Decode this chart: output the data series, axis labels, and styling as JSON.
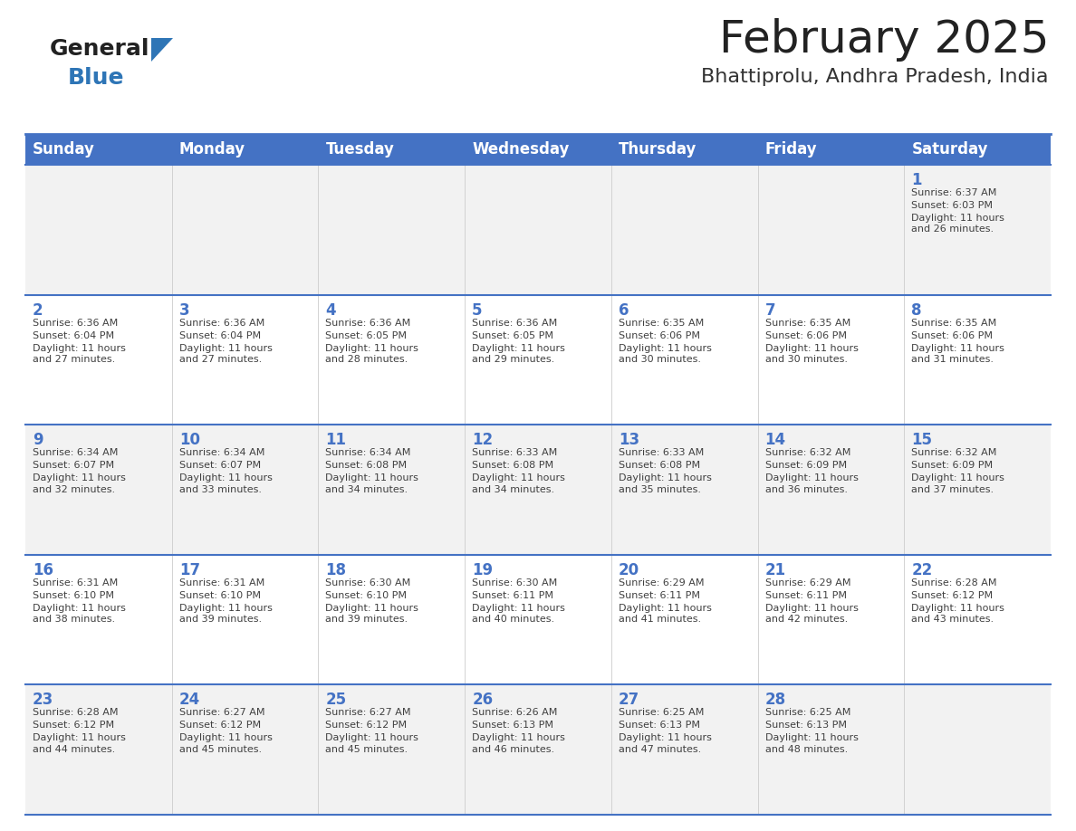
{
  "title": "February 2025",
  "subtitle": "Bhattiprolu, Andhra Pradesh, India",
  "header_color": "#4472C4",
  "header_text_color": "#FFFFFF",
  "weekdays": [
    "Sunday",
    "Monday",
    "Tuesday",
    "Wednesday",
    "Thursday",
    "Friday",
    "Saturday"
  ],
  "bg_color": "#FFFFFF",
  "cell_bg_even": "#F2F2F2",
  "cell_bg_odd": "#FFFFFF",
  "day_number_color": "#4472C4",
  "text_color": "#404040",
  "line_color": "#4472C4",
  "calendar": [
    [
      null,
      null,
      null,
      null,
      null,
      null,
      {
        "day": 1,
        "sunrise": "6:37 AM",
        "sunset": "6:03 PM",
        "daylight": "11 hours\nand 26 minutes."
      }
    ],
    [
      {
        "day": 2,
        "sunrise": "6:36 AM",
        "sunset": "6:04 PM",
        "daylight": "11 hours\nand 27 minutes."
      },
      {
        "day": 3,
        "sunrise": "6:36 AM",
        "sunset": "6:04 PM",
        "daylight": "11 hours\nand 27 minutes."
      },
      {
        "day": 4,
        "sunrise": "6:36 AM",
        "sunset": "6:05 PM",
        "daylight": "11 hours\nand 28 minutes."
      },
      {
        "day": 5,
        "sunrise": "6:36 AM",
        "sunset": "6:05 PM",
        "daylight": "11 hours\nand 29 minutes."
      },
      {
        "day": 6,
        "sunrise": "6:35 AM",
        "sunset": "6:06 PM",
        "daylight": "11 hours\nand 30 minutes."
      },
      {
        "day": 7,
        "sunrise": "6:35 AM",
        "sunset": "6:06 PM",
        "daylight": "11 hours\nand 30 minutes."
      },
      {
        "day": 8,
        "sunrise": "6:35 AM",
        "sunset": "6:06 PM",
        "daylight": "11 hours\nand 31 minutes."
      }
    ],
    [
      {
        "day": 9,
        "sunrise": "6:34 AM",
        "sunset": "6:07 PM",
        "daylight": "11 hours\nand 32 minutes."
      },
      {
        "day": 10,
        "sunrise": "6:34 AM",
        "sunset": "6:07 PM",
        "daylight": "11 hours\nand 33 minutes."
      },
      {
        "day": 11,
        "sunrise": "6:34 AM",
        "sunset": "6:08 PM",
        "daylight": "11 hours\nand 34 minutes."
      },
      {
        "day": 12,
        "sunrise": "6:33 AM",
        "sunset": "6:08 PM",
        "daylight": "11 hours\nand 34 minutes."
      },
      {
        "day": 13,
        "sunrise": "6:33 AM",
        "sunset": "6:08 PM",
        "daylight": "11 hours\nand 35 minutes."
      },
      {
        "day": 14,
        "sunrise": "6:32 AM",
        "sunset": "6:09 PM",
        "daylight": "11 hours\nand 36 minutes."
      },
      {
        "day": 15,
        "sunrise": "6:32 AM",
        "sunset": "6:09 PM",
        "daylight": "11 hours\nand 37 minutes."
      }
    ],
    [
      {
        "day": 16,
        "sunrise": "6:31 AM",
        "sunset": "6:10 PM",
        "daylight": "11 hours\nand 38 minutes."
      },
      {
        "day": 17,
        "sunrise": "6:31 AM",
        "sunset": "6:10 PM",
        "daylight": "11 hours\nand 39 minutes."
      },
      {
        "day": 18,
        "sunrise": "6:30 AM",
        "sunset": "6:10 PM",
        "daylight": "11 hours\nand 39 minutes."
      },
      {
        "day": 19,
        "sunrise": "6:30 AM",
        "sunset": "6:11 PM",
        "daylight": "11 hours\nand 40 minutes."
      },
      {
        "day": 20,
        "sunrise": "6:29 AM",
        "sunset": "6:11 PM",
        "daylight": "11 hours\nand 41 minutes."
      },
      {
        "day": 21,
        "sunrise": "6:29 AM",
        "sunset": "6:11 PM",
        "daylight": "11 hours\nand 42 minutes."
      },
      {
        "day": 22,
        "sunrise": "6:28 AM",
        "sunset": "6:12 PM",
        "daylight": "11 hours\nand 43 minutes."
      }
    ],
    [
      {
        "day": 23,
        "sunrise": "6:28 AM",
        "sunset": "6:12 PM",
        "daylight": "11 hours\nand 44 minutes."
      },
      {
        "day": 24,
        "sunrise": "6:27 AM",
        "sunset": "6:12 PM",
        "daylight": "11 hours\nand 45 minutes."
      },
      {
        "day": 25,
        "sunrise": "6:27 AM",
        "sunset": "6:12 PM",
        "daylight": "11 hours\nand 45 minutes."
      },
      {
        "day": 26,
        "sunrise": "6:26 AM",
        "sunset": "6:13 PM",
        "daylight": "11 hours\nand 46 minutes."
      },
      {
        "day": 27,
        "sunrise": "6:25 AM",
        "sunset": "6:13 PM",
        "daylight": "11 hours\nand 47 minutes."
      },
      {
        "day": 28,
        "sunrise": "6:25 AM",
        "sunset": "6:13 PM",
        "daylight": "11 hours\nand 48 minutes."
      },
      null
    ]
  ],
  "logo_text1": "General",
  "logo_text2": "Blue",
  "logo_color1": "#222222",
  "logo_color2": "#2E75B6",
  "logo_triangle_color": "#2E75B6",
  "title_fontsize": 36,
  "subtitle_fontsize": 16,
  "header_fontsize": 12,
  "day_num_fontsize": 12,
  "cell_text_fontsize": 8
}
